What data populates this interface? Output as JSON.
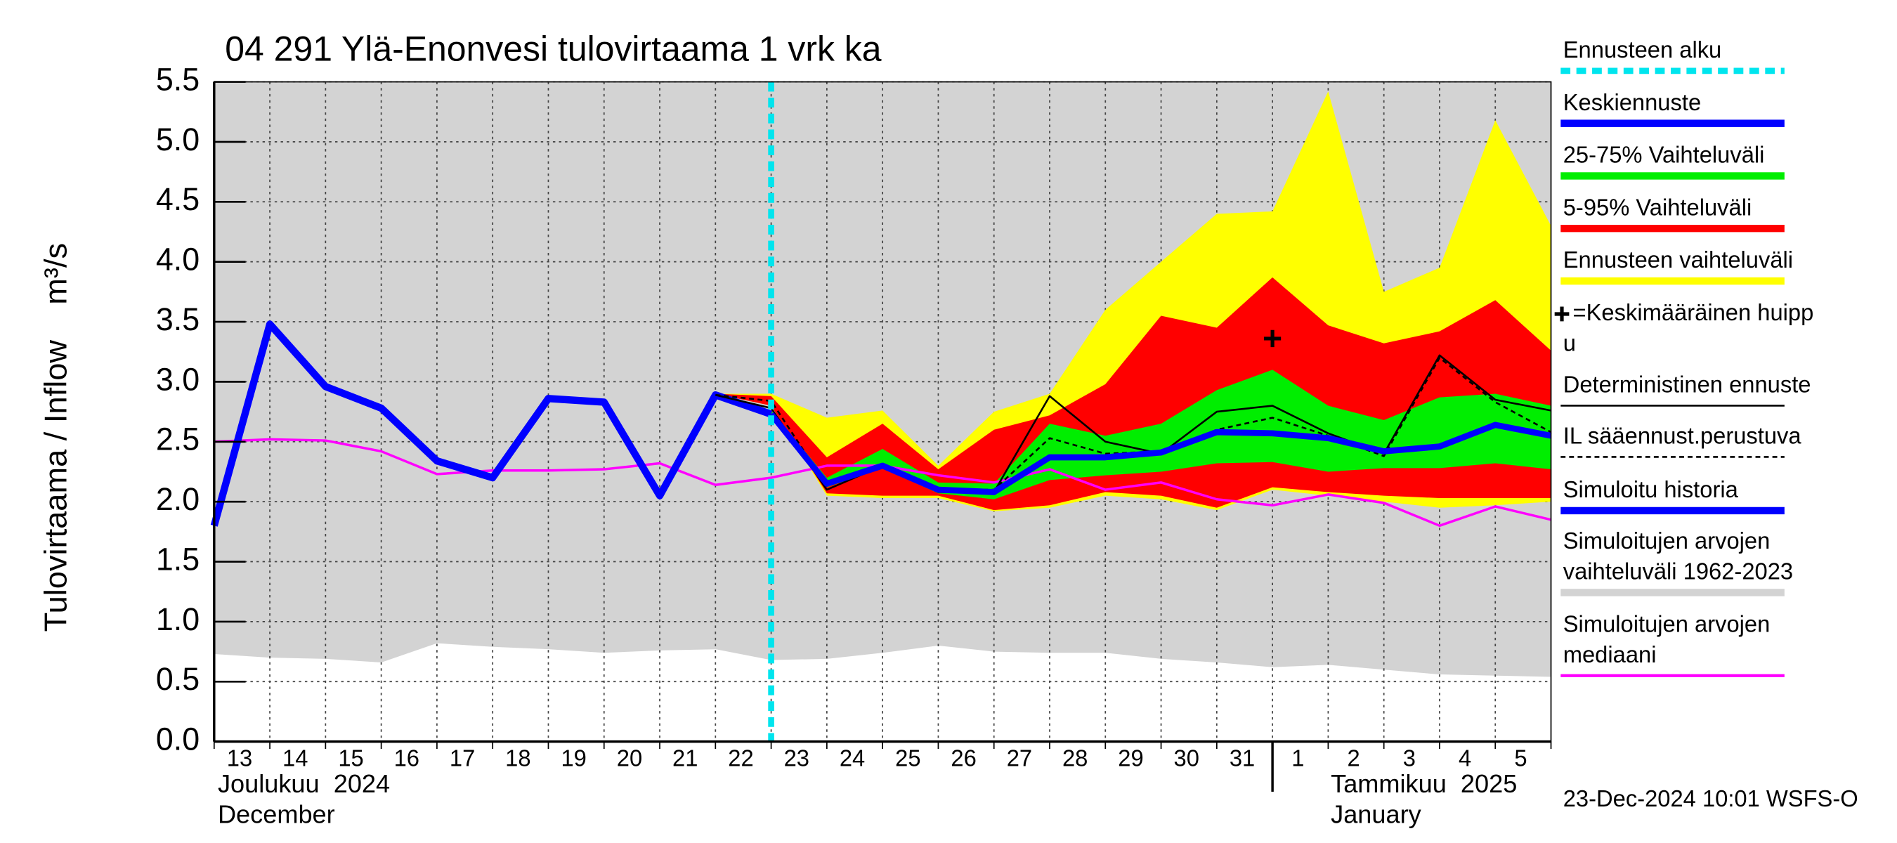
{
  "chart_data": {
    "type": "line",
    "title": "04 291 Ylä-Enonvesi tulovirtaama 1 vrk ka",
    "y_label": "Tulovirtaama / Inflow    m³/s",
    "month_labels": [
      "Joulukuu  2024",
      "December",
      "Tammikuu  2025",
      "January"
    ],
    "footer": "23-Dec-2024 10:01 WSFS-O",
    "categories": [
      "13",
      "14",
      "15",
      "16",
      "17",
      "18",
      "19",
      "20",
      "21",
      "22",
      "23",
      "24",
      "25",
      "26",
      "27",
      "28",
      "29",
      "30",
      "31",
      "1",
      "2",
      "3",
      "4",
      "5",
      null
    ],
    "month_start": "1",
    "ylim": [
      0,
      5.5
    ],
    "yticks": [
      {
        "value": 0,
        "label": "0.0"
      },
      0.5,
      {
        "value": 1,
        "label": "1.0"
      },
      1.5,
      {
        "value": 2,
        "label": "2.0"
      },
      2.5,
      {
        "value": 3,
        "label": "3.0"
      },
      3.5,
      {
        "value": 4,
        "label": "4.0"
      },
      4.5,
      {
        "value": 5,
        "label": "5.0"
      },
      5.5
    ],
    "grid": true,
    "series": [
      {
        "name": "Ennusteen alku",
        "kind": "vline",
        "at": "23",
        "color": "#00e5ee"
      },
      {
        "name": "Keskiennuste",
        "kind": "line",
        "style": "medium",
        "color": "#0000ff",
        "values": [
          null,
          null,
          null,
          null,
          null,
          null,
          null,
          null,
          null,
          null,
          2.73,
          2.15,
          2.3,
          2.1,
          2.08,
          2.37,
          2.37,
          2.41,
          2.58,
          2.57,
          2.53,
          2.42,
          2.46,
          2.64,
          2.55
        ]
      },
      {
        "name": "25-75% Vaihteluväli",
        "kind": "band",
        "color": "#00ee00",
        "lower": [
          null,
          null,
          null,
          null,
          null,
          null,
          null,
          null,
          null,
          2.89,
          2.73,
          2.12,
          2.28,
          2.07,
          2.02,
          2.18,
          2.22,
          2.25,
          2.32,
          2.33,
          2.25,
          2.28,
          2.28,
          2.32,
          2.27
        ],
        "upper": [
          null,
          null,
          null,
          null,
          null,
          null,
          null,
          null,
          null,
          2.89,
          2.76,
          2.2,
          2.44,
          2.16,
          2.15,
          2.65,
          2.55,
          2.65,
          2.93,
          3.1,
          2.8,
          2.68,
          2.87,
          2.9,
          2.8
        ]
      },
      {
        "name": "5-95% Vaihteluväli",
        "kind": "band",
        "color": "#ff0000",
        "lower": [
          null,
          null,
          null,
          null,
          null,
          null,
          null,
          null,
          null,
          2.9,
          2.8,
          2.07,
          2.05,
          2.05,
          1.93,
          1.97,
          2.08,
          2.05,
          1.95,
          2.12,
          2.08,
          2.05,
          2.03,
          2.03,
          2.03
        ],
        "upper": [
          null,
          null,
          null,
          null,
          null,
          null,
          null,
          null,
          null,
          2.9,
          2.88,
          2.37,
          2.65,
          2.27,
          2.6,
          2.72,
          2.98,
          3.55,
          3.45,
          3.87,
          3.47,
          3.32,
          3.42,
          3.68,
          3.26
        ]
      },
      {
        "name": "Ennusteen vaihteluväli",
        "kind": "band",
        "color": "#ffff00",
        "lower": [
          null,
          null,
          null,
          null,
          null,
          null,
          null,
          null,
          null,
          2.9,
          2.8,
          2.05,
          2.03,
          2.03,
          1.92,
          1.95,
          2.05,
          2.02,
          1.93,
          2.1,
          2.05,
          2.0,
          1.95,
          1.97,
          2.0
        ],
        "upper": [
          null,
          null,
          null,
          null,
          null,
          null,
          null,
          null,
          null,
          2.9,
          2.9,
          2.7,
          2.76,
          2.3,
          2.75,
          2.9,
          3.6,
          4.0,
          4.4,
          4.42,
          5.42,
          3.75,
          3.95,
          5.18,
          4.3
        ]
      },
      {
        "name": "=Keskimääräinen huipp\nu",
        "kind": "marker",
        "color": "#000000",
        "values": [
          null,
          null,
          null,
          null,
          null,
          null,
          null,
          null,
          null,
          null,
          null,
          null,
          null,
          null,
          null,
          null,
          null,
          null,
          null,
          3.36,
          null,
          null,
          null,
          null,
          null
        ]
      },
      {
        "name": "Deterministinen ennuste",
        "kind": "line",
        "style": "hair",
        "color": "#000000",
        "values": [
          null,
          null,
          null,
          null,
          null,
          null,
          null,
          null,
          null,
          2.89,
          2.78,
          2.1,
          2.3,
          2.08,
          2.08,
          2.88,
          2.5,
          2.4,
          2.75,
          2.8,
          2.57,
          2.4,
          3.22,
          2.85,
          2.76
        ]
      },
      {
        "name": "IL sääennust.perustuva",
        "kind": "line",
        "style": "dashed",
        "color": "#000000",
        "values": [
          null,
          null,
          null,
          null,
          null,
          null,
          null,
          null,
          null,
          2.89,
          2.84,
          2.13,
          2.3,
          2.1,
          2.1,
          2.53,
          2.4,
          2.42,
          2.6,
          2.7,
          2.55,
          2.38,
          3.2,
          2.83,
          2.58
        ]
      },
      {
        "name": "Simuloitu historia",
        "kind": "line",
        "style": "thick",
        "color": "#0000ff",
        "values": [
          1.8,
          3.48,
          2.96,
          2.78,
          2.34,
          2.2,
          2.86,
          2.83,
          2.05,
          2.89,
          2.73,
          null,
          null,
          null,
          null,
          null,
          null,
          null,
          null,
          null,
          null,
          null,
          null,
          null,
          null
        ]
      },
      {
        "name": "Simuloitujen arvojen\nvaihteluväli 1962-2023",
        "kind": "band",
        "color": "#d3d3d3",
        "lower": [
          0.73,
          0.7,
          0.69,
          0.66,
          0.82,
          0.79,
          0.77,
          0.74,
          0.76,
          0.77,
          0.68,
          0.69,
          0.74,
          0.8,
          0.75,
          0.74,
          0.74,
          0.69,
          0.66,
          0.62,
          0.64,
          0.6,
          0.56,
          0.55,
          0.54
        ],
        "upper": [
          5.5,
          5.5,
          5.5,
          5.5,
          5.5,
          5.5,
          5.5,
          5.5,
          5.5,
          5.5,
          5.5,
          5.5,
          5.5,
          5.5,
          5.5,
          5.5,
          5.5,
          5.5,
          5.5,
          5.5,
          5.5,
          5.5,
          5.5,
          5.5,
          5.5
        ]
      },
      {
        "name": "Simuloitujen arvojen\nmediaani",
        "kind": "line",
        "style": "thin",
        "color": "#ff00ff",
        "values": [
          2.5,
          2.52,
          2.51,
          2.42,
          2.23,
          2.26,
          2.26,
          2.27,
          2.32,
          2.14,
          2.2,
          2.3,
          2.3,
          2.22,
          2.16,
          2.27,
          2.1,
          2.16,
          2.02,
          1.97,
          2.06,
          1.99,
          1.8,
          1.96,
          1.85
        ]
      }
    ]
  }
}
